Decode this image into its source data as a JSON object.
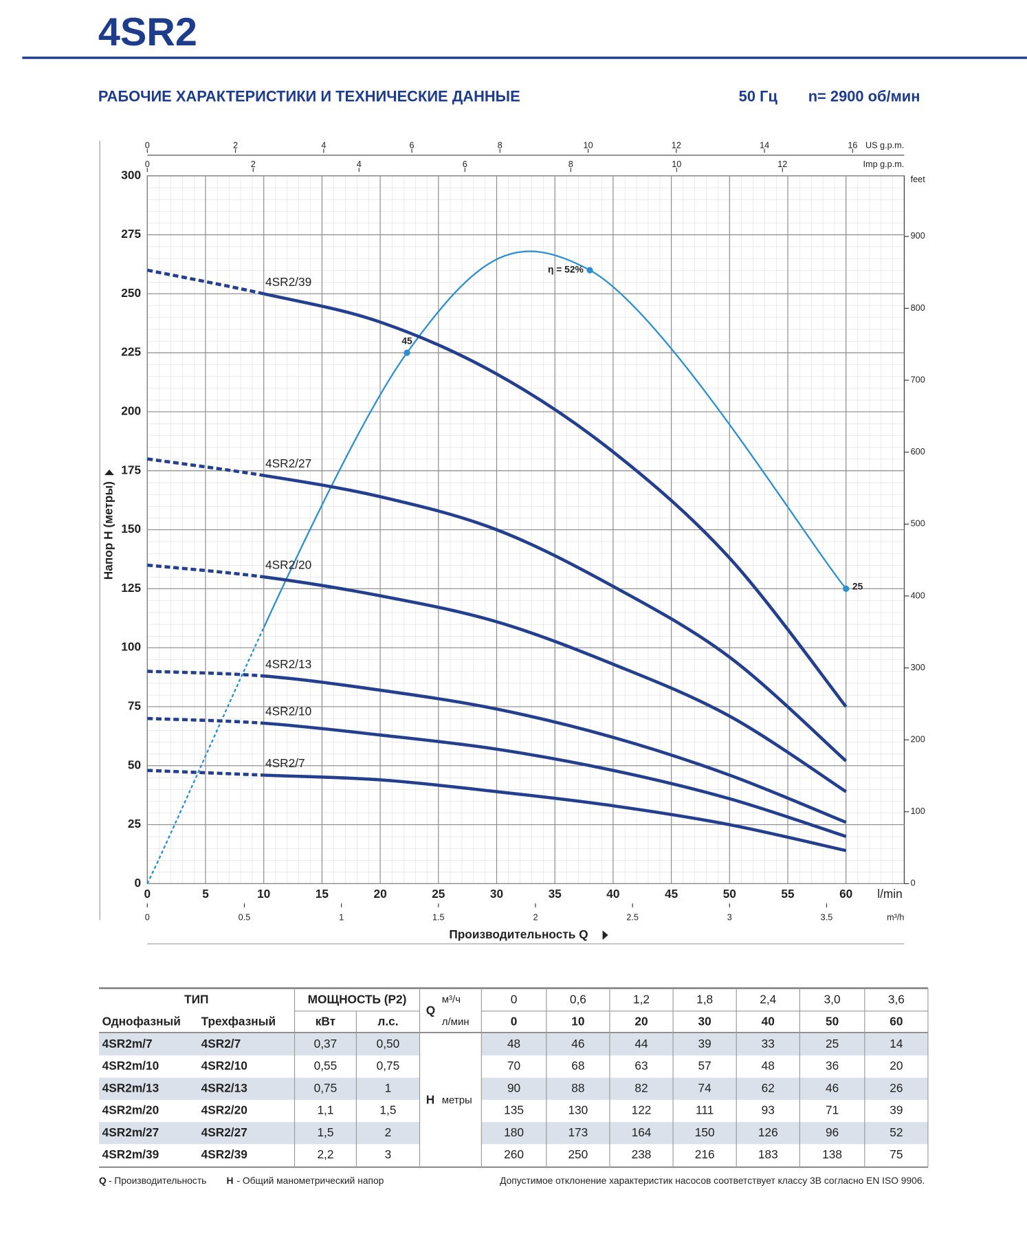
{
  "header": {
    "title": "4SR2",
    "subtitle": "РАБОЧИЕ ХАРАКТЕРИСТИКИ И ТЕХНИЧЕСКИЕ ДАННЫЕ",
    "frequency": "50 Гц",
    "speed": "n= 2900 об/мин"
  },
  "chart_data": {
    "type": "line",
    "x_label": "Производительность Q",
    "x_unit": "l/min",
    "y_label": "Напор H (метры)",
    "y2_unit": "feet",
    "xlim": [
      0,
      65
    ],
    "xticks": [
      0,
      5,
      10,
      15,
      20,
      25,
      30,
      35,
      40,
      45,
      50,
      55,
      60
    ],
    "ylim": [
      0,
      300
    ],
    "yticks": [
      0,
      25,
      50,
      75,
      100,
      125,
      150,
      175,
      200,
      225,
      250,
      275,
      300
    ],
    "y2lim": [
      0,
      984.25
    ],
    "y2ticks": [
      0,
      100,
      200,
      300,
      400,
      500,
      600,
      700,
      800,
      900
    ],
    "x2_axes": [
      {
        "unit": "US g.p.m.",
        "lim": [
          0,
          17.17
        ],
        "ticks": [
          0,
          2,
          4,
          6,
          8,
          10,
          12,
          14,
          16
        ]
      },
      {
        "unit": "Imp g.p.m.",
        "lim": [
          0,
          14.3
        ],
        "ticks": [
          0,
          2,
          4,
          6,
          8,
          10,
          12
        ]
      },
      {
        "unit": "m³/h",
        "lim": [
          0,
          3.9
        ],
        "ticks": [
          0,
          0.5,
          1,
          1.5,
          2,
          2.5,
          3,
          3.5
        ]
      }
    ],
    "grid": true,
    "x": [
      0,
      10,
      20,
      30,
      40,
      50,
      60
    ],
    "series": [
      {
        "name": "4SR2/7",
        "color": "#233f8e",
        "values": [
          48,
          46,
          44,
          39,
          33,
          25,
          14
        ]
      },
      {
        "name": "4SR2/10",
        "color": "#233f8e",
        "values": [
          70,
          68,
          63,
          57,
          48,
          36,
          20
        ]
      },
      {
        "name": "4SR2/13",
        "color": "#233f8e",
        "values": [
          90,
          88,
          82,
          74,
          62,
          46,
          26
        ]
      },
      {
        "name": "4SR2/20",
        "color": "#233f8e",
        "values": [
          135,
          130,
          122,
          111,
          93,
          71,
          39
        ]
      },
      {
        "name": "4SR2/27",
        "color": "#233f8e",
        "values": [
          180,
          173,
          164,
          150,
          126,
          96,
          52
        ]
      },
      {
        "name": "4SR2/39",
        "color": "#233f8e",
        "values": [
          260,
          250,
          238,
          216,
          183,
          138,
          75
        ]
      }
    ],
    "efficiency": {
      "color": "#2b8fd0",
      "lim": [
        0,
        60
      ],
      "x": [
        0,
        22.3,
        38,
        60
      ],
      "values": [
        0,
        45,
        52,
        25
      ],
      "value_labels": [
        null,
        "45",
        "η = 52%",
        "25"
      ]
    }
  },
  "table": {
    "headers": {
      "type": "ТИП",
      "single": "Однофазный",
      "three": "Трехфазный",
      "power": "МОЩНОСТЬ (P2)",
      "kw": "кВт",
      "hp": "л.с.",
      "q": "Q",
      "q_m3h": "м³/ч",
      "q_lmin": "л/мин",
      "h": "H",
      "h_unit": "метры"
    },
    "q_m3h": [
      "0",
      "0,6",
      "1,2",
      "1,8",
      "2,4",
      "3,0",
      "3,6"
    ],
    "rows": [
      {
        "single": "4SR2m/7",
        "kw": "0,37",
        "hp": "0,50"
      },
      {
        "single": "4SR2m/10",
        "kw": "0,55",
        "hp": "0,75"
      },
      {
        "single": "4SR2m/13",
        "kw": "0,75",
        "hp": "1"
      },
      {
        "single": "4SR2m/20",
        "kw": "1,1",
        "hp": "1,5"
      },
      {
        "single": "4SR2m/27",
        "kw": "1,5",
        "hp": "2"
      },
      {
        "single": "4SR2m/39",
        "kw": "2,2",
        "hp": "3"
      }
    ]
  },
  "footer": {
    "q": "Q",
    "q_text": "- Производительность",
    "h": "H",
    "h_text": "- Общий манометрический напор",
    "note": "Допустимое отклонение характеристик насосов соответствует классу 3B согласно EN ISO 9906."
  }
}
